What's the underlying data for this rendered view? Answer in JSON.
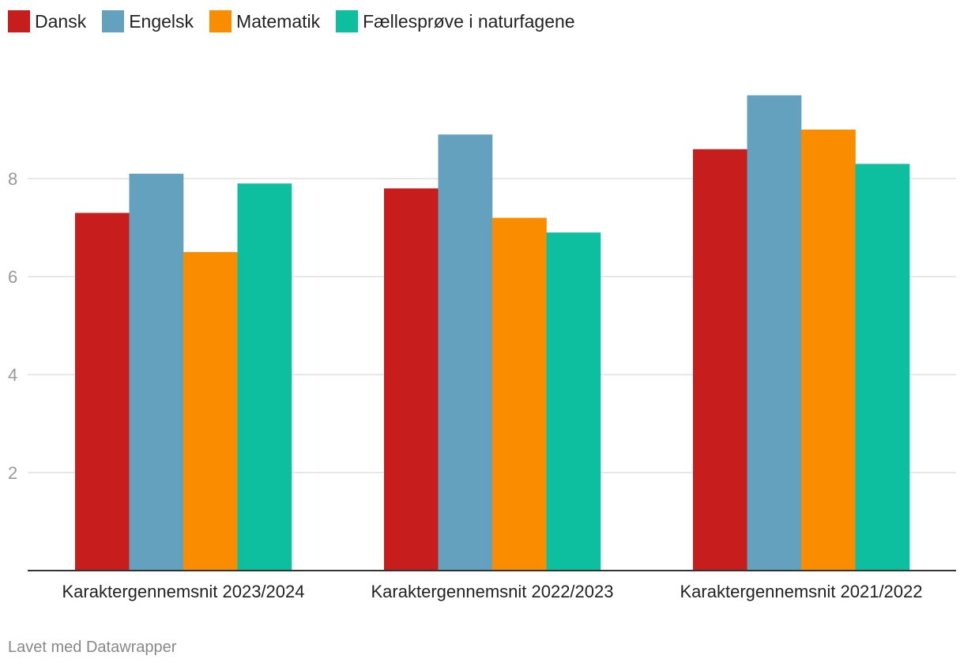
{
  "chart_data": {
    "type": "bar",
    "categories": [
      "Karaktergennemsnit 2023/2024",
      "Karaktergennemsnit 2022/2023",
      "Karaktergennemsnit 2021/2022"
    ],
    "series": [
      {
        "name": "Dansk",
        "color": "#c71e1d",
        "values": [
          7.3,
          7.8,
          8.6
        ]
      },
      {
        "name": "Engelsk",
        "color": "#63a1be",
        "values": [
          8.1,
          8.9,
          9.7
        ]
      },
      {
        "name": "Matematik",
        "color": "#fa8c00",
        "values": [
          6.5,
          7.2,
          9.0
        ]
      },
      {
        "name": "Fællesprøve i naturfagene",
        "color": "#0dbe9f",
        "values": [
          7.9,
          6.9,
          8.3
        ]
      }
    ],
    "y_ticks": [
      "2",
      "4",
      "6",
      "8"
    ],
    "ylim": [
      0,
      10.4
    ],
    "grid": true,
    "legend_position": "top-left"
  },
  "footer": "Lavet med Datawrapper"
}
